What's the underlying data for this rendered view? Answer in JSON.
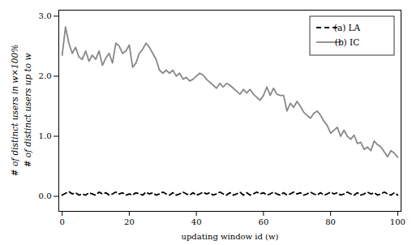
{
  "chart_data": {
    "type": "line",
    "xlabel": "updating window id (w)",
    "ylabel": [
      "# of distinct users in w×100%",
      "# of distinct users up to w"
    ],
    "x": [
      0,
      1,
      2,
      3,
      4,
      5,
      6,
      7,
      8,
      9,
      10,
      11,
      12,
      13,
      14,
      15,
      16,
      17,
      18,
      19,
      20,
      21,
      22,
      23,
      24,
      25,
      26,
      27,
      28,
      29,
      30,
      31,
      32,
      33,
      34,
      35,
      36,
      37,
      38,
      39,
      40,
      41,
      42,
      43,
      44,
      45,
      46,
      47,
      48,
      49,
      50,
      51,
      52,
      53,
      54,
      55,
      56,
      57,
      58,
      59,
      60,
      61,
      62,
      63,
      64,
      65,
      66,
      67,
      68,
      69,
      70,
      71,
      72,
      73,
      74,
      75,
      76,
      77,
      78,
      79,
      80,
      81,
      82,
      83,
      84,
      85,
      86,
      87,
      88,
      89,
      90,
      91,
      92,
      93,
      94,
      95,
      96,
      97,
      98,
      99,
      100
    ],
    "series": [
      {
        "name": "(a) LA",
        "color": "#000000",
        "line_style": "dashed",
        "values": [
          0.02,
          0.05,
          0.08,
          0.04,
          0.06,
          0.02,
          0.04,
          0.02,
          0.06,
          0.04,
          0.02,
          0.07,
          0.04,
          0.06,
          0.02,
          0.04,
          0.07,
          0.04,
          0.06,
          0.02,
          0.04,
          0.02,
          0.06,
          0.04,
          0.02,
          0.07,
          0.04,
          0.06,
          0.02,
          0.04,
          0.07,
          0.04,
          0.02,
          0.06,
          0.02,
          0.04,
          0.07,
          0.04,
          0.02,
          0.06,
          0.02,
          0.04,
          0.07,
          0.04,
          0.06,
          0.02,
          0.04,
          0.07,
          0.04,
          0.02,
          0.06,
          0.02,
          0.04,
          0.07,
          0.02,
          0.06,
          0.02,
          0.04,
          0.07,
          0.04,
          0.06,
          0.02,
          0.04,
          0.07,
          0.04,
          0.02,
          0.06,
          0.02,
          0.04,
          0.07,
          0.04,
          0.06,
          0.02,
          0.04,
          0.07,
          0.04,
          0.02,
          0.06,
          0.02,
          0.04,
          0.07,
          0.04,
          0.06,
          0.02,
          0.04,
          0.07,
          0.04,
          0.02,
          0.06,
          0.02,
          0.04,
          0.07,
          0.04,
          0.06,
          0.02,
          0.04,
          0.07,
          0.04,
          0.02,
          0.06,
          0.02
        ]
      },
      {
        "name": "(b) IC",
        "color": "#888888",
        "line_style": "solid",
        "values": [
          2.35,
          2.82,
          2.55,
          2.38,
          2.48,
          2.32,
          2.28,
          2.42,
          2.25,
          2.35,
          2.28,
          2.42,
          2.18,
          2.3,
          2.38,
          2.22,
          2.55,
          2.5,
          2.38,
          2.42,
          2.52,
          2.15,
          2.22,
          2.38,
          2.45,
          2.55,
          2.48,
          2.38,
          2.28,
          2.1,
          2.05,
          2.1,
          2.05,
          2.1,
          2.0,
          2.05,
          1.95,
          1.98,
          1.92,
          1.95,
          2.0,
          2.05,
          2.02,
          1.95,
          1.9,
          1.85,
          1.8,
          1.88,
          1.82,
          1.88,
          1.85,
          1.8,
          1.75,
          1.7,
          1.78,
          1.72,
          1.78,
          1.7,
          1.65,
          1.6,
          1.68,
          1.82,
          1.68,
          1.8,
          1.7,
          1.68,
          1.68,
          1.42,
          1.55,
          1.48,
          1.58,
          1.5,
          1.4,
          1.35,
          1.3,
          1.38,
          1.42,
          1.35,
          1.25,
          1.18,
          1.05,
          1.1,
          1.15,
          1.0,
          1.1,
          1.0,
          0.95,
          1.02,
          0.88,
          0.9,
          0.78,
          0.82,
          0.76,
          0.92,
          0.86,
          0.82,
          0.74,
          0.66,
          0.76,
          0.72,
          0.65
        ]
      }
    ],
    "xlim": [
      -1,
      101
    ],
    "ylim": [
      -0.25,
      3.1
    ],
    "xticks": [
      0,
      20,
      40,
      60,
      80,
      100
    ],
    "yticks": [
      0,
      1,
      2,
      3
    ],
    "grid": false,
    "legend": "upper right"
  }
}
